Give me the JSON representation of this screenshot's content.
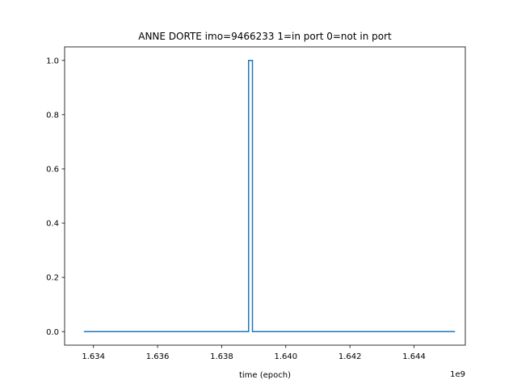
{
  "chart_data": {
    "type": "line",
    "step": true,
    "title": "ANNE DORTE imo=9466233 1=in port 0=not in port",
    "xlabel": "time (epoch)",
    "ylabel": "",
    "x_offset_label": "1e9",
    "xlim": [
      1.6331,
      1.6456
    ],
    "ylim": [
      -0.05,
      1.05
    ],
    "x_ticks": [
      1.634,
      1.636,
      1.638,
      1.64,
      1.642,
      1.644
    ],
    "x_tick_labels": [
      "1.634",
      "1.636",
      "1.638",
      "1.640",
      "1.642",
      "1.644"
    ],
    "y_ticks": [
      0.0,
      0.2,
      0.4,
      0.6,
      0.8,
      1.0
    ],
    "y_tick_labels": [
      "0.0",
      "0.2",
      "0.4",
      "0.6",
      "0.8",
      "1.0"
    ],
    "grid": false,
    "series": [
      {
        "color": "#1f77b4",
        "x": [
          1.6337,
          1.63884,
          1.63884,
          1.63896,
          1.63896,
          1.64528
        ],
        "y": [
          0,
          0,
          1,
          1,
          0,
          0
        ]
      }
    ]
  }
}
